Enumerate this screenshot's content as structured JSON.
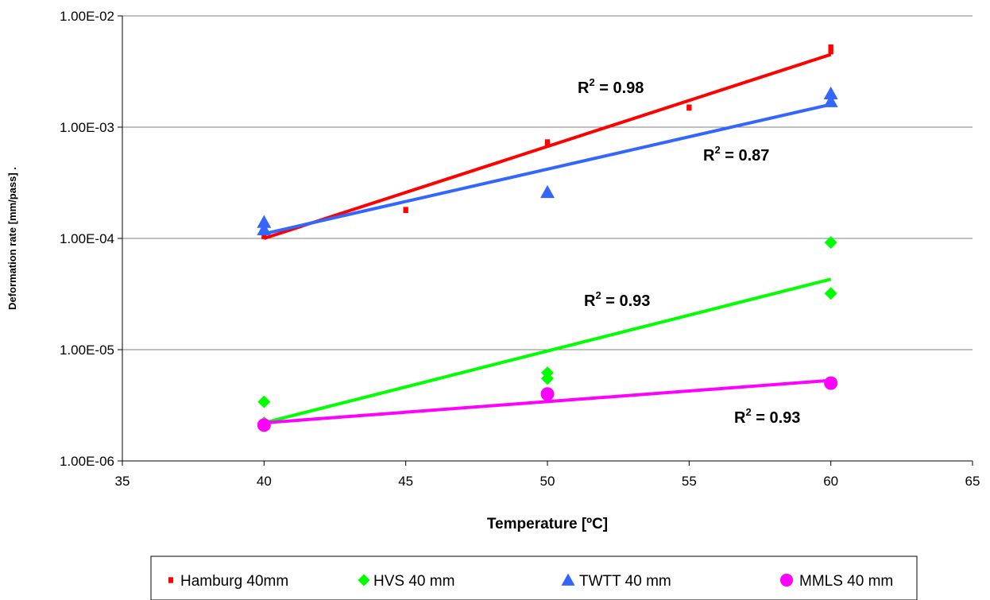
{
  "chart_data": {
    "type": "scatter",
    "xlabel": "Temperature [ºC]",
    "ylabel": "Deformation rate [mm/pass]  .",
    "xlim": [
      35,
      65
    ],
    "ylim": [
      1e-06,
      0.01
    ],
    "y_scale": "log",
    "x_ticks": [
      "35",
      "40",
      "45",
      "50",
      "55",
      "60",
      "65"
    ],
    "y_ticks": [
      "1.00E-06",
      "1.00E-05",
      "1.00E-04",
      "1.00E-03",
      "1.00E-02"
    ],
    "grid": "horizontal major gridlines",
    "legend_position": "bottom",
    "series": [
      {
        "name": "Hamburg 40mm",
        "marker": "square",
        "color": "#ff0000",
        "points": [
          [
            40,
            0.000105
          ],
          [
            45,
            0.00018
          ],
          [
            50,
            0.0007
          ],
          [
            50,
            0.00073
          ],
          [
            55,
            0.0015
          ],
          [
            60,
            0.0048
          ],
          [
            60,
            0.0052
          ]
        ],
        "trendline": [
          [
            40,
            0.0001
          ],
          [
            60,
            0.0045
          ]
        ],
        "r2_label": "R",
        "r2_sup": "2",
        "r2_value": " = 0.98"
      },
      {
        "name": "HVS 40 mm",
        "marker": "diamond",
        "color": "#00ff00",
        "points": [
          [
            40,
            3.4e-06
          ],
          [
            40,
            2.2e-06
          ],
          [
            50,
            6.2e-06
          ],
          [
            50,
            5.5e-06
          ],
          [
            60,
            9.2e-05
          ],
          [
            60,
            3.2e-05
          ]
        ],
        "trendline": [
          [
            40,
            2.2e-06
          ],
          [
            60,
            4.3e-05
          ]
        ],
        "r2_label": "R",
        "r2_sup": "2",
        "r2_value": " = 0.87"
      },
      {
        "name": "TWTT 40 mm",
        "marker": "triangle",
        "color": "#3366ff",
        "points": [
          [
            40,
            0.00014
          ],
          [
            40,
            0.00012
          ],
          [
            50,
            0.00026
          ],
          [
            60,
            0.002
          ],
          [
            60,
            0.0017
          ]
        ],
        "trendline": [
          [
            40,
            0.00011
          ],
          [
            60,
            0.0016
          ]
        ],
        "r2_label": "R",
        "r2_sup": "2",
        "r2_value": " = 0.93"
      },
      {
        "name": "MMLS 40 mm",
        "marker": "circle",
        "color": "#ff00ff",
        "points": [
          [
            40,
            2.1e-06
          ],
          [
            50,
            4e-06
          ],
          [
            60,
            5e-06
          ]
        ],
        "trendline": [
          [
            40,
            2.2e-06
          ],
          [
            60,
            5.3e-06
          ]
        ],
        "r2_label": "R",
        "r2_sup": "2",
        "r2_value": " = 0.93"
      }
    ]
  }
}
